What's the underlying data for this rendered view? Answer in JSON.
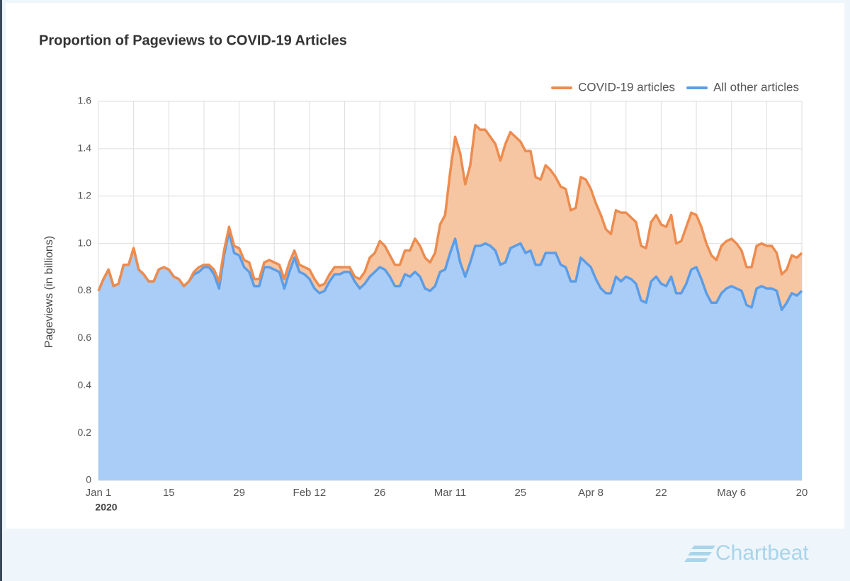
{
  "brand": "Chartbeat",
  "chart_data": {
    "type": "stacked-area",
    "title": "Proportion of Pageviews to COVID-19 Articles",
    "y_label": "Pageviews (in billions)",
    "year_label": "2020",
    "stacked": true,
    "grid": true,
    "legend": "top-right",
    "x": [
      "2020-01-01",
      "2020-01-02",
      "2020-01-03",
      "2020-01-04",
      "2020-01-05",
      "2020-01-06",
      "2020-01-07",
      "2020-01-08",
      "2020-01-09",
      "2020-01-10",
      "2020-01-11",
      "2020-01-12",
      "2020-01-13",
      "2020-01-14",
      "2020-01-15",
      "2020-01-16",
      "2020-01-17",
      "2020-01-18",
      "2020-01-19",
      "2020-01-20",
      "2020-01-21",
      "2020-01-22",
      "2020-01-23",
      "2020-01-24",
      "2020-01-25",
      "2020-01-26",
      "2020-01-27",
      "2020-01-28",
      "2020-01-29",
      "2020-01-30",
      "2020-01-31",
      "2020-02-01",
      "2020-02-02",
      "2020-02-03",
      "2020-02-04",
      "2020-02-05",
      "2020-02-06",
      "2020-02-07",
      "2020-02-08",
      "2020-02-09",
      "2020-02-10",
      "2020-02-11",
      "2020-02-12",
      "2020-02-13",
      "2020-02-14",
      "2020-02-15",
      "2020-02-16",
      "2020-02-17",
      "2020-02-18",
      "2020-02-19",
      "2020-02-20",
      "2020-02-21",
      "2020-02-22",
      "2020-02-23",
      "2020-02-24",
      "2020-02-25",
      "2020-02-26",
      "2020-02-27",
      "2020-02-28",
      "2020-02-29",
      "2020-03-01",
      "2020-03-02",
      "2020-03-03",
      "2020-03-04",
      "2020-03-05",
      "2020-03-06",
      "2020-03-07",
      "2020-03-08",
      "2020-03-09",
      "2020-03-10",
      "2020-03-11",
      "2020-03-12",
      "2020-03-13",
      "2020-03-14",
      "2020-03-15",
      "2020-03-16",
      "2020-03-17",
      "2020-03-18",
      "2020-03-19",
      "2020-03-20",
      "2020-03-21",
      "2020-03-22",
      "2020-03-23",
      "2020-03-24",
      "2020-03-25",
      "2020-03-26",
      "2020-03-27",
      "2020-03-28",
      "2020-03-29",
      "2020-03-30",
      "2020-03-31",
      "2020-04-01",
      "2020-04-02",
      "2020-04-03",
      "2020-04-04",
      "2020-04-05",
      "2020-04-06",
      "2020-04-07",
      "2020-04-08",
      "2020-04-09",
      "2020-04-10",
      "2020-04-11",
      "2020-04-12",
      "2020-04-13",
      "2020-04-14",
      "2020-04-15",
      "2020-04-16",
      "2020-04-17",
      "2020-04-18",
      "2020-04-19",
      "2020-04-20",
      "2020-04-21",
      "2020-04-22",
      "2020-04-23",
      "2020-04-24",
      "2020-04-25",
      "2020-04-26",
      "2020-04-27",
      "2020-04-28",
      "2020-04-29",
      "2020-04-30",
      "2020-05-01",
      "2020-05-02",
      "2020-05-03",
      "2020-05-04",
      "2020-05-05",
      "2020-05-06",
      "2020-05-07",
      "2020-05-08",
      "2020-05-09",
      "2020-05-10",
      "2020-05-11",
      "2020-05-12",
      "2020-05-13",
      "2020-05-14",
      "2020-05-15",
      "2020-05-16",
      "2020-05-17",
      "2020-05-18",
      "2020-05-19",
      "2020-05-20"
    ],
    "series": [
      {
        "name": "COVID-19 articles",
        "color": "#ec8c4f",
        "fill": "#f6c6a3",
        "values": [
          0,
          0,
          0,
          0,
          0,
          0,
          0,
          0,
          0,
          0,
          0,
          0,
          0,
          0,
          0,
          0,
          0,
          0,
          0,
          0.01,
          0.02,
          0.01,
          0.01,
          0.02,
          0.03,
          0.02,
          0.02,
          0.03,
          0.03,
          0.03,
          0.04,
          0.03,
          0.03,
          0.02,
          0.03,
          0.03,
          0.03,
          0.04,
          0.04,
          0.03,
          0.03,
          0.03,
          0.04,
          0.04,
          0.03,
          0.03,
          0.03,
          0.03,
          0.03,
          0.02,
          0.02,
          0.02,
          0.04,
          0.05,
          0.08,
          0.08,
          0.11,
          0.1,
          0.09,
          0.09,
          0.09,
          0.1,
          0.11,
          0.14,
          0.13,
          0.13,
          0.12,
          0.14,
          0.2,
          0.23,
          0.34,
          0.43,
          0.46,
          0.39,
          0.41,
          0.51,
          0.49,
          0.48,
          0.46,
          0.45,
          0.44,
          0.5,
          0.49,
          0.46,
          0.43,
          0.43,
          0.42,
          0.37,
          0.36,
          0.37,
          0.35,
          0.32,
          0.33,
          0.33,
          0.3,
          0.31,
          0.34,
          0.35,
          0.33,
          0.32,
          0.31,
          0.27,
          0.25,
          0.28,
          0.29,
          0.27,
          0.26,
          0.26,
          0.23,
          0.23,
          0.25,
          0.26,
          0.25,
          0.25,
          0.26,
          0.21,
          0.22,
          0.24,
          0.24,
          0.22,
          0.22,
          0.21,
          0.2,
          0.18,
          0.2,
          0.2,
          0.2,
          0.19,
          0.17,
          0.16,
          0.17,
          0.18,
          0.18,
          0.18,
          0.18,
          0.16,
          0.15,
          0.14,
          0.16,
          0.16,
          0.16
        ]
      },
      {
        "name": "All other articles",
        "color": "#5b9de6",
        "fill": "#aacdf7",
        "values": [
          0.8,
          0.85,
          0.89,
          0.82,
          0.83,
          0.91,
          0.91,
          0.98,
          0.89,
          0.87,
          0.84,
          0.84,
          0.89,
          0.9,
          0.89,
          0.86,
          0.85,
          0.82,
          0.84,
          0.87,
          0.88,
          0.9,
          0.9,
          0.87,
          0.81,
          0.95,
          1.05,
          0.96,
          0.95,
          0.9,
          0.88,
          0.82,
          0.82,
          0.9,
          0.9,
          0.89,
          0.88,
          0.81,
          0.88,
          0.94,
          0.88,
          0.87,
          0.85,
          0.81,
          0.79,
          0.8,
          0.84,
          0.87,
          0.87,
          0.88,
          0.88,
          0.84,
          0.81,
          0.83,
          0.86,
          0.88,
          0.9,
          0.89,
          0.86,
          0.82,
          0.82,
          0.87,
          0.86,
          0.88,
          0.86,
          0.81,
          0.8,
          0.82,
          0.88,
          0.89,
          0.96,
          1.02,
          0.92,
          0.86,
          0.92,
          0.99,
          0.99,
          1.0,
          0.99,
          0.97,
          0.91,
          0.92,
          0.98,
          0.99,
          1.0,
          0.96,
          0.97,
          0.91,
          0.91,
          0.96,
          0.96,
          0.96,
          0.91,
          0.9,
          0.84,
          0.84,
          0.94,
          0.92,
          0.9,
          0.85,
          0.81,
          0.79,
          0.79,
          0.86,
          0.84,
          0.86,
          0.85,
          0.83,
          0.76,
          0.75,
          0.84,
          0.86,
          0.83,
          0.82,
          0.86,
          0.79,
          0.79,
          0.83,
          0.89,
          0.9,
          0.85,
          0.79,
          0.75,
          0.75,
          0.79,
          0.81,
          0.82,
          0.81,
          0.8,
          0.74,
          0.73,
          0.81,
          0.82,
          0.81,
          0.81,
          0.8,
          0.72,
          0.75,
          0.79,
          0.78,
          0.8
        ]
      }
    ],
    "xlim": [
      "2020-01-01",
      "2020-05-20"
    ],
    "xticks": [
      {
        "value": "2020-01-01",
        "label": "Jan 1"
      },
      {
        "value": "2020-01-15",
        "label": "15"
      },
      {
        "value": "2020-01-29",
        "label": "29"
      },
      {
        "value": "2020-02-12",
        "label": "Feb 12"
      },
      {
        "value": "2020-02-26",
        "label": "26"
      },
      {
        "value": "2020-03-11",
        "label": "Mar 11"
      },
      {
        "value": "2020-03-25",
        "label": "25"
      },
      {
        "value": "2020-04-08",
        "label": "Apr 8"
      },
      {
        "value": "2020-04-22",
        "label": "22"
      },
      {
        "value": "2020-05-06",
        "label": "May 6"
      },
      {
        "value": "2020-05-20",
        "label": "20"
      }
    ],
    "xminorticks": [
      "2020-01-08",
      "2020-01-22",
      "2020-02-05",
      "2020-02-19",
      "2020-03-04",
      "2020-03-18",
      "2020-04-01",
      "2020-04-15",
      "2020-04-29",
      "2020-05-13"
    ],
    "ylim": [
      0,
      1.6
    ],
    "yticks": [
      0,
      0.2,
      0.4,
      0.6,
      0.8,
      {
        "value": 1,
        "label": "1.0"
      },
      1.2,
      1.4,
      1.6
    ]
  }
}
